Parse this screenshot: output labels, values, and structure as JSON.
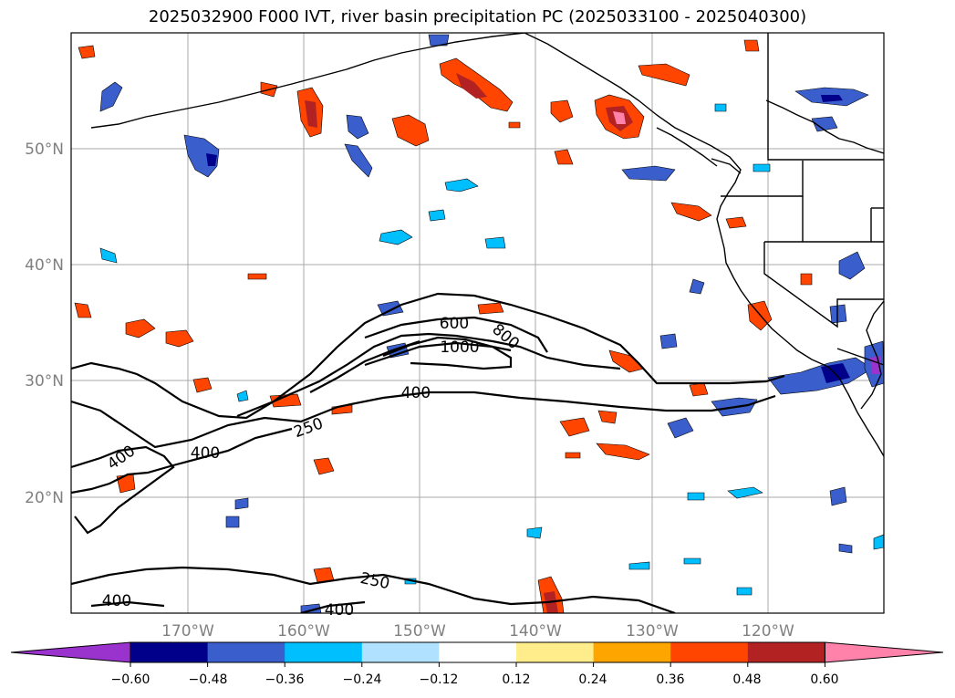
{
  "title": "2025032900 F000 IVT, river basin precipitation PC (2025033100 - 2025040300)",
  "map": {
    "lat_labels": [
      "50°N",
      "40°N",
      "30°N",
      "20°N"
    ],
    "lon_labels": [
      "170°W",
      "160°W",
      "150°W",
      "140°W",
      "130°W",
      "120°W"
    ],
    "contour_labels": [
      {
        "text": "600"
      },
      {
        "text": "800"
      },
      {
        "text": "1000"
      },
      {
        "text": "400"
      },
      {
        "text": "250"
      },
      {
        "text": "400"
      },
      {
        "text": "400"
      },
      {
        "text": "250"
      },
      {
        "text": "400"
      },
      {
        "text": "400"
      }
    ]
  },
  "colorbar": {
    "ticks": [
      "−0.60",
      "−0.48",
      "−0.36",
      "−0.24",
      "−0.12",
      "0.12",
      "0.24",
      "0.36",
      "0.48",
      "0.60"
    ],
    "colors": [
      "#9a32cd",
      "#00008b",
      "#3a5fcd",
      "#00bfff",
      "#b0e2ff",
      "#ffffff",
      "#ffec8b",
      "#ffa500",
      "#ff4500",
      "#b22222",
      "#ff82ab"
    ]
  }
}
